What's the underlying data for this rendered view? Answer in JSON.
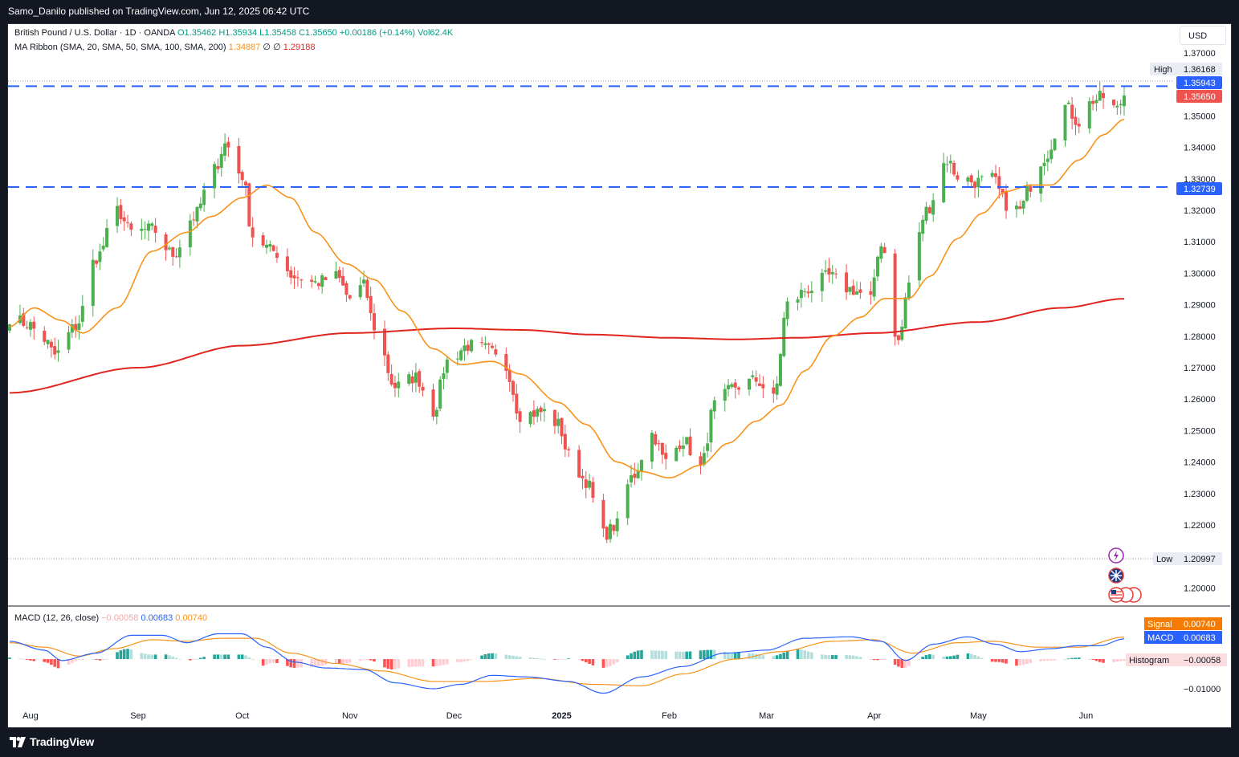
{
  "header": {
    "publisher": "Samo_Danilo published on TradingView.com, Jun 12, 2025 06:42 UTC"
  },
  "legend": {
    "symbol": "British Pound / U.S. Dollar · 1D · OANDA",
    "open": "O1.35462",
    "high": "H1.35934",
    "low": "L1.35458",
    "close": "C1.35650",
    "change": "+0.00186 (+0.14%)",
    "volume": "Vol62.4K",
    "ma_label": "MA Ribbon (SMA, 20, SMA, 50, SMA, 100, SMA, 200)",
    "ma_val1": "1.34887",
    "ma_sep1": "∅",
    "ma_sep2": "∅",
    "ma_val4": "1.29188",
    "macd_label": "MACD (12, 26, close)",
    "macd_hist": "−0.00058",
    "macd_macd": "0.00683",
    "macd_signal": "0.00740"
  },
  "currency_button": "USD",
  "price_axis": {
    "labels": [
      "1.37000",
      "1.35000",
      "1.34000",
      "1.33000",
      "1.32000",
      "1.31000",
      "1.30000",
      "1.29000",
      "1.28000",
      "1.27000",
      "1.26000",
      "1.25000",
      "1.24000",
      "1.23000",
      "1.22000",
      "1.20000"
    ],
    "high_label": "High",
    "high_value": "1.36168",
    "low_label": "Low",
    "low_value": "1.20997",
    "resistance_tag": "1.35943",
    "support_tag": "1.32739",
    "last_price_tag": "1.35650"
  },
  "macd_axis": {
    "labels": [
      "−0.01000"
    ],
    "signal_label": "Signal",
    "signal_value": "0.00740",
    "macd_label": "MACD",
    "macd_value": "0.00683",
    "hist_label": "Histogram",
    "hist_value": "−0.00058"
  },
  "time_axis": [
    "Aug",
    "Sep",
    "Oct",
    "Nov",
    "Dec",
    "2025",
    "Feb",
    "Mar",
    "Apr",
    "May",
    "Jun"
  ],
  "footer": {
    "brand": "TradingView"
  },
  "colors": {
    "up": "#4caf50",
    "down": "#ef5350",
    "sma20": "#f7931a",
    "sma200": "#e0251f",
    "level": "#2962ff",
    "macd": "#2962ff",
    "signal": "#f7931a",
    "hist_up_strong": "#26a69a",
    "hist_up_weak": "#b2dfdb",
    "hist_down_strong": "#ff5252",
    "hist_down_weak": "#ffcdd2"
  },
  "chart_data": {
    "type": "candlestick",
    "symbol": "GBP/USD",
    "timeframe": "1D",
    "ylim": [
      1.195,
      1.3735
    ],
    "levels": [
      1.35943,
      1.32739
    ],
    "high": 1.36168,
    "low": 1.20997,
    "last": 1.3565,
    "anchors": [
      [
        "Jul 26",
        1.286
      ],
      [
        "Jul 31",
        1.284
      ],
      [
        "Aug 5",
        1.279
      ],
      [
        "Aug 8",
        1.274
      ],
      [
        "Aug 14",
        1.283
      ],
      [
        "Aug 20",
        1.305
      ],
      [
        "Aug 26",
        1.32
      ],
      [
        "Aug 30",
        1.313
      ],
      [
        "Sep 5",
        1.314
      ],
      [
        "Sep 11",
        1.306
      ],
      [
        "Sep 17",
        1.318
      ],
      [
        "Sep 23",
        1.333
      ],
      [
        "Sep 26",
        1.341
      ],
      [
        "Oct 1",
        1.331
      ],
      [
        "Oct 4",
        1.312
      ],
      [
        "Oct 10",
        1.307
      ],
      [
        "Oct 16",
        1.299
      ],
      [
        "Oct 22",
        1.297
      ],
      [
        "Oct 28",
        1.299
      ],
      [
        "Nov 1",
        1.292
      ],
      [
        "Nov 5",
        1.296
      ],
      [
        "Nov 8",
        1.283
      ],
      [
        "Nov 14",
        1.264
      ],
      [
        "Nov 20",
        1.267
      ],
      [
        "Nov 25",
        1.256
      ],
      [
        "Nov 29",
        1.272
      ],
      [
        "Dec 5",
        1.277
      ],
      [
        "Dec 10",
        1.276
      ],
      [
        "Dec 16",
        1.27
      ],
      [
        "Dec 20",
        1.255
      ],
      [
        "Dec 27",
        1.256
      ],
      [
        "Dec 31",
        1.252
      ],
      [
        "Jan 3",
        1.242
      ],
      [
        "Jan 8",
        1.234
      ],
      [
        "Jan 13",
        1.217
      ],
      [
        "Jan 17",
        1.22
      ],
      [
        "Jan 21",
        1.235
      ],
      [
        "Jan 27",
        1.249
      ],
      [
        "Jan 31",
        1.24
      ],
      [
        "Feb 5",
        1.247
      ],
      [
        "Feb 10",
        1.238
      ],
      [
        "Feb 14",
        1.258
      ],
      [
        "Feb 20",
        1.264
      ],
      [
        "Feb 26",
        1.266
      ],
      [
        "Mar 3",
        1.26
      ],
      [
        "Mar 7",
        1.29
      ],
      [
        "Mar 13",
        1.295
      ],
      [
        "Mar 19",
        1.299
      ],
      [
        "Mar 25",
        1.295
      ],
      [
        "Mar 31",
        1.292
      ],
      [
        "Apr 3",
        1.31
      ],
      [
        "Apr 8",
        1.278
      ],
      [
        "Apr 11",
        1.297
      ],
      [
        "Apr 16",
        1.32
      ],
      [
        "Apr 22",
        1.336
      ],
      [
        "Apr 25",
        1.331
      ],
      [
        "Apr 30",
        1.329
      ],
      [
        "May 5",
        1.33
      ],
      [
        "May 9",
        1.322
      ],
      [
        "May 13",
        1.32
      ],
      [
        "May 16",
        1.328
      ],
      [
        "May 20",
        1.337
      ],
      [
        "May 26",
        1.353
      ],
      [
        "May 30",
        1.348
      ],
      [
        "Jun 3",
        1.355
      ],
      [
        "Jun 6",
        1.356
      ],
      [
        "Jun 10",
        1.352
      ],
      [
        "Jun 12",
        1.3565
      ]
    ],
    "sma20": [
      [
        "Jul 26",
        1.283
      ],
      [
        "Aug 2",
        1.289
      ],
      [
        "Aug 10",
        1.285
      ],
      [
        "Aug 16",
        1.281
      ],
      [
        "Aug 26",
        1.289
      ],
      [
        "Sep 5",
        1.307
      ],
      [
        "Sep 15",
        1.313
      ],
      [
        "Sep 22",
        1.318
      ],
      [
        "Oct 1",
        1.324
      ],
      [
        "Oct 8",
        1.328
      ],
      [
        "Oct 15",
        1.324
      ],
      [
        "Oct 22",
        1.313
      ],
      [
        "Oct 31",
        1.303
      ],
      [
        "Nov 8",
        1.298
      ],
      [
        "Nov 16",
        1.288
      ],
      [
        "Nov 25",
        1.276
      ],
      [
        "Dec 3",
        1.271
      ],
      [
        "Dec 12",
        1.272
      ],
      [
        "Dec 20",
        1.268
      ],
      [
        "Dec 31",
        1.259
      ],
      [
        "Jan 8",
        1.252
      ],
      [
        "Jan 17",
        1.24
      ],
      [
        "Jan 24",
        1.237
      ],
      [
        "Feb 1",
        1.235
      ],
      [
        "Feb 10",
        1.239
      ],
      [
        "Feb 18",
        1.246
      ],
      [
        "Feb 26",
        1.253
      ],
      [
        "Mar 5",
        1.258
      ],
      [
        "Mar 12",
        1.269
      ],
      [
        "Mar 20",
        1.28
      ],
      [
        "Mar 28",
        1.286
      ],
      [
        "Apr 4",
        1.292
      ],
      [
        "Apr 11",
        1.292
      ],
      [
        "Apr 17",
        1.299
      ],
      [
        "Apr 25",
        1.311
      ],
      [
        "May 2",
        1.319
      ],
      [
        "May 9",
        1.326
      ],
      [
        "May 16",
        1.328
      ],
      [
        "May 22",
        1.328
      ],
      [
        "May 30",
        1.336
      ],
      [
        "Jun 6",
        1.344
      ],
      [
        "Jun 12",
        1.3489
      ]
    ],
    "sma200": [
      [
        "Jul 26",
        1.262
      ],
      [
        "Sep 1",
        1.27
      ],
      [
        "Oct 1",
        1.277
      ],
      [
        "Nov 1",
        1.281
      ],
      [
        "Dec 1",
        1.2825
      ],
      [
        "Dec 20",
        1.282
      ],
      [
        "Jan 10",
        1.2805
      ],
      [
        "Feb 1",
        1.2795
      ],
      [
        "Feb 20",
        1.279
      ],
      [
        "Mar 10",
        1.2795
      ],
      [
        "Apr 1",
        1.281
      ],
      [
        "May 1",
        1.2845
      ],
      [
        "May 25",
        1.289
      ],
      [
        "Jun 12",
        1.2919
      ]
    ],
    "macd": {
      "series_names": [
        "MACD",
        "Signal",
        "Histogram"
      ],
      "macd_line": [
        [
          "Jul 26",
          0.006
        ],
        [
          "Aug 5",
          0.003
        ],
        [
          "Aug 10",
          -0.0005
        ],
        [
          "Aug 20",
          0.002
        ],
        [
          "Aug 30",
          0.008
        ],
        [
          "Sep 8",
          0.008
        ],
        [
          "Sep 15",
          0.0055
        ],
        [
          "Sep 24",
          0.0085
        ],
        [
          "Oct 1",
          0.0085
        ],
        [
          "Oct 8",
          0.004
        ],
        [
          "Oct 16",
          -0.001
        ],
        [
          "Oct 25",
          -0.003
        ],
        [
          "Nov 5",
          -0.0035
        ],
        [
          "Nov 14",
          -0.008
        ],
        [
          "Nov 25",
          -0.01
        ],
        [
          "Dec 3",
          -0.0085
        ],
        [
          "Dec 12",
          -0.0055
        ],
        [
          "Dec 22",
          -0.006
        ],
        [
          "Jan 3",
          -0.0075
        ],
        [
          "Jan 13",
          -0.0115
        ],
        [
          "Jan 24",
          -0.006
        ],
        [
          "Feb 5",
          -0.0025
        ],
        [
          "Feb 17",
          0.002
        ],
        [
          "Mar 1",
          0.003
        ],
        [
          "Mar 12",
          0.007
        ],
        [
          "Mar 25",
          0.0075
        ],
        [
          "Apr 3",
          0.006
        ],
        [
          "Apr 10",
          -0.0005
        ],
        [
          "Apr 18",
          0.005
        ],
        [
          "Apr 28",
          0.0075
        ],
        [
          "May 6",
          0.005
        ],
        [
          "May 13",
          0.0025
        ],
        [
          "May 22",
          0.0035
        ],
        [
          "May 30",
          0.0045
        ],
        [
          "Jun 5",
          0.0045
        ],
        [
          "Jun 12",
          0.0068
        ]
      ],
      "signal_line": [
        [
          "Jul 26",
          0.0055
        ],
        [
          "Aug 5",
          0.004
        ],
        [
          "Aug 15",
          0.001
        ],
        [
          "Aug 25",
          0.0035
        ],
        [
          "Sep 5",
          0.0065
        ],
        [
          "Sep 15",
          0.006
        ],
        [
          "Sep 25",
          0.007
        ],
        [
          "Oct 5",
          0.007
        ],
        [
          "Oct 15",
          0.002
        ],
        [
          "Oct 28",
          -0.0015
        ],
        [
          "Nov 10",
          -0.004
        ],
        [
          "Nov 25",
          -0.0075
        ],
        [
          "Dec 10",
          -0.0075
        ],
        [
          "Dec 25",
          -0.0065
        ],
        [
          "Jan 10",
          -0.0085
        ],
        [
          "Jan 24",
          -0.009
        ],
        [
          "Feb 5",
          -0.005
        ],
        [
          "Feb 20",
          0.0
        ],
        [
          "Mar 5",
          0.0025
        ],
        [
          "Mar 20",
          0.006
        ],
        [
          "Apr 1",
          0.0065
        ],
        [
          "Apr 12",
          0.002
        ],
        [
          "Apr 25",
          0.0055
        ],
        [
          "May 5",
          0.006
        ],
        [
          "May 18",
          0.004
        ],
        [
          "May 30",
          0.004
        ],
        [
          "Jun 12",
          0.0074
        ]
      ]
    }
  }
}
